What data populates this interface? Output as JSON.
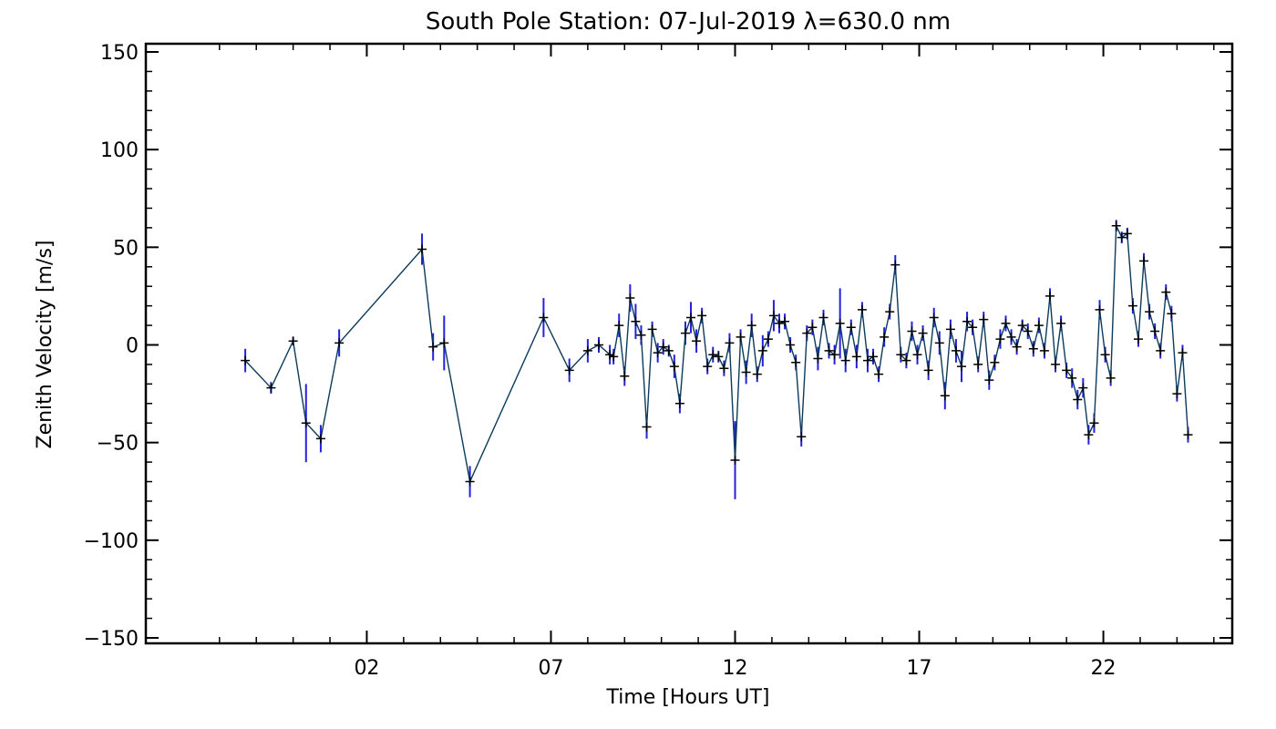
{
  "chart_data": {
    "type": "line",
    "title": "South Pole Station: 07-Jul-2019 λ=630.0 nm",
    "xlabel": "Time [Hours UT]",
    "ylabel": "Zenith Velocity [m/s]",
    "xlim": [
      -4.0,
      25.5
    ],
    "ylim": [
      -150,
      150
    ],
    "x_ticks": [
      {
        "value": 2,
        "label": "02"
      },
      {
        "value": 7,
        "label": "07"
      },
      {
        "value": 12,
        "label": "12"
      },
      {
        "value": 17,
        "label": "17"
      },
      {
        "value": 22,
        "label": "22"
      }
    ],
    "y_ticks": [
      {
        "value": 150,
        "label": "150"
      },
      {
        "value": 100,
        "label": "100"
      },
      {
        "value": 50,
        "label": "50"
      },
      {
        "value": 0,
        "label": "0"
      },
      {
        "value": -50,
        "label": "−50"
      },
      {
        "value": -100,
        "label": "−100"
      },
      {
        "value": -150,
        "label": "−150"
      }
    ],
    "colors": {
      "line": "#0b3a5a",
      "errorbar": "#2222dd",
      "marker": "#000000",
      "axis": "#000000"
    },
    "series": [
      {
        "name": "Zenith velocity",
        "x": [
          -1.3,
          -0.6,
          0.0,
          0.35,
          0.75,
          1.25,
          3.5,
          3.8,
          4.1,
          4.8,
          6.8,
          7.5,
          8.0,
          8.3,
          8.6,
          8.7,
          8.85,
          9.0,
          9.15,
          9.3,
          9.45,
          9.6,
          9.75,
          9.9,
          10.05,
          10.2,
          10.35,
          10.5,
          10.65,
          10.8,
          10.95,
          11.1,
          11.25,
          11.4,
          11.55,
          11.7,
          11.85,
          12.0,
          12.15,
          12.3,
          12.45,
          12.6,
          12.75,
          12.9,
          13.05,
          13.2,
          13.35,
          13.5,
          13.65,
          13.8,
          13.95,
          14.1,
          14.25,
          14.4,
          14.55,
          14.7,
          14.85,
          15.0,
          15.15,
          15.3,
          15.45,
          15.6,
          15.75,
          15.9,
          16.05,
          16.2,
          16.35,
          16.5,
          16.65,
          16.8,
          16.95,
          17.1,
          17.25,
          17.4,
          17.55,
          17.7,
          17.85,
          18.0,
          18.15,
          18.3,
          18.45,
          18.6,
          18.75,
          18.9,
          19.05,
          19.2,
          19.35,
          19.5,
          19.65,
          19.8,
          19.95,
          20.1,
          20.25,
          20.4,
          20.55,
          20.7,
          20.85,
          21.0,
          21.15,
          21.3,
          21.45,
          21.6,
          21.75,
          21.9,
          22.05,
          22.2,
          22.35,
          22.5,
          22.65,
          22.8,
          22.95,
          23.1,
          23.25,
          23.4,
          23.55,
          23.7,
          23.85,
          24.0,
          24.15,
          24.3
        ],
        "y": [
          -8,
          -22,
          2,
          -40,
          -48,
          1,
          49,
          -1,
          1,
          -70,
          14,
          -13,
          -3,
          0,
          -5,
          -6,
          10,
          -16,
          24,
          12,
          5,
          -42,
          8,
          -4,
          -1,
          -3,
          -11,
          -30,
          6,
          14,
          2,
          15,
          -11,
          -5,
          -6,
          -12,
          1,
          -59,
          4,
          -14,
          10,
          -15,
          -3,
          3,
          15,
          11,
          12,
          0,
          -9,
          -47,
          6,
          9,
          -7,
          14,
          -3,
          -5,
          11,
          -8,
          9,
          -6,
          18,
          -8,
          -6,
          -15,
          4,
          17,
          41,
          -5,
          -8,
          7,
          -5,
          6,
          -13,
          14,
          1,
          -26,
          8,
          -3,
          -11,
          12,
          9,
          -10,
          13,
          -18,
          -9,
          3,
          11,
          4,
          -1,
          10,
          7,
          -2,
          10,
          -3,
          25,
          -10,
          11,
          -13,
          -17,
          -28,
          -22,
          -46,
          -40,
          18,
          -5,
          -17,
          61,
          55,
          57,
          20,
          3,
          43,
          17,
          7,
          -3,
          27,
          16,
          -25,
          -4,
          -46
        ],
        "err": [
          6,
          3,
          2,
          20,
          7,
          7,
          8,
          7,
          14,
          8,
          10,
          6,
          6,
          4,
          5,
          4,
          6,
          5,
          7,
          9,
          5,
          6,
          4,
          5,
          4,
          3,
          6,
          5,
          6,
          8,
          6,
          4,
          4,
          4,
          3,
          4,
          5,
          20,
          4,
          6,
          6,
          4,
          8,
          4,
          8,
          5,
          4,
          4,
          4,
          5,
          4,
          4,
          6,
          4,
          4,
          5,
          18,
          6,
          4,
          6,
          4,
          6,
          4,
          4,
          5,
          4,
          5,
          4,
          4,
          5,
          5,
          4,
          5,
          5,
          6,
          7,
          5,
          6,
          8,
          5,
          4,
          4,
          4,
          5,
          4,
          5,
          4,
          4,
          4,
          3,
          4,
          4,
          4,
          4,
          4,
          4,
          4,
          4,
          5,
          5,
          5,
          5,
          5,
          5,
          4,
          4,
          3,
          3,
          3,
          4,
          4,
          4,
          4,
          4,
          4,
          4,
          4,
          4,
          4,
          4
        ]
      }
    ]
  }
}
